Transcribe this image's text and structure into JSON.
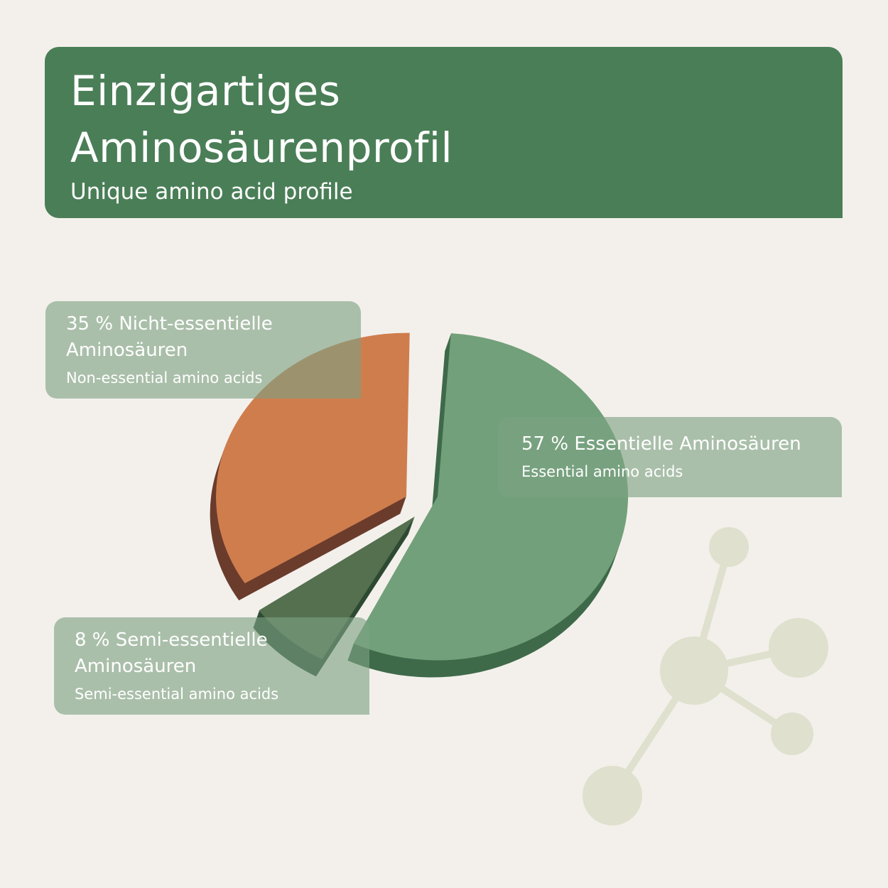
{
  "header": {
    "title": "Einzigartiges\nAminosäurenprofil",
    "subtitle": "Unique amino acid profile"
  },
  "labels": {
    "non_essential": {
      "main": "35 % Nicht-essentielle\nAminosäuren",
      "sub": "Non-essential amino acids"
    },
    "essential": {
      "main": "57 % Essentielle Aminosäuren",
      "sub": "Essential amino acids"
    },
    "semi_essential": {
      "main": "8 % Semi-essentielle\nAminosäuren",
      "sub": "Semi-essential amino acids"
    }
  },
  "colors": {
    "header_bg": "#4a7e57",
    "essential": "#72a07a",
    "essential_side": "#3f6a4a",
    "non_essential": "#cf7d4d",
    "non_essential_side": "#6b3c2c",
    "semi_essential": "#54704f",
    "semi_essential_side": "#2f4a33",
    "molecule": "#dfe0cd"
  },
  "chart_data": {
    "type": "pie",
    "slices": [
      {
        "label": "57 % Essentielle Aminosäuren",
        "value": 57
      },
      {
        "label": "8 % Semi-essentielle Aminosäuren",
        "value": 8
      },
      {
        "label": "35 % Nicht-essentielle Aminosäuren",
        "value": 35
      }
    ],
    "start": "top",
    "direction": "clockwise",
    "exploded": true,
    "style": "3d"
  }
}
